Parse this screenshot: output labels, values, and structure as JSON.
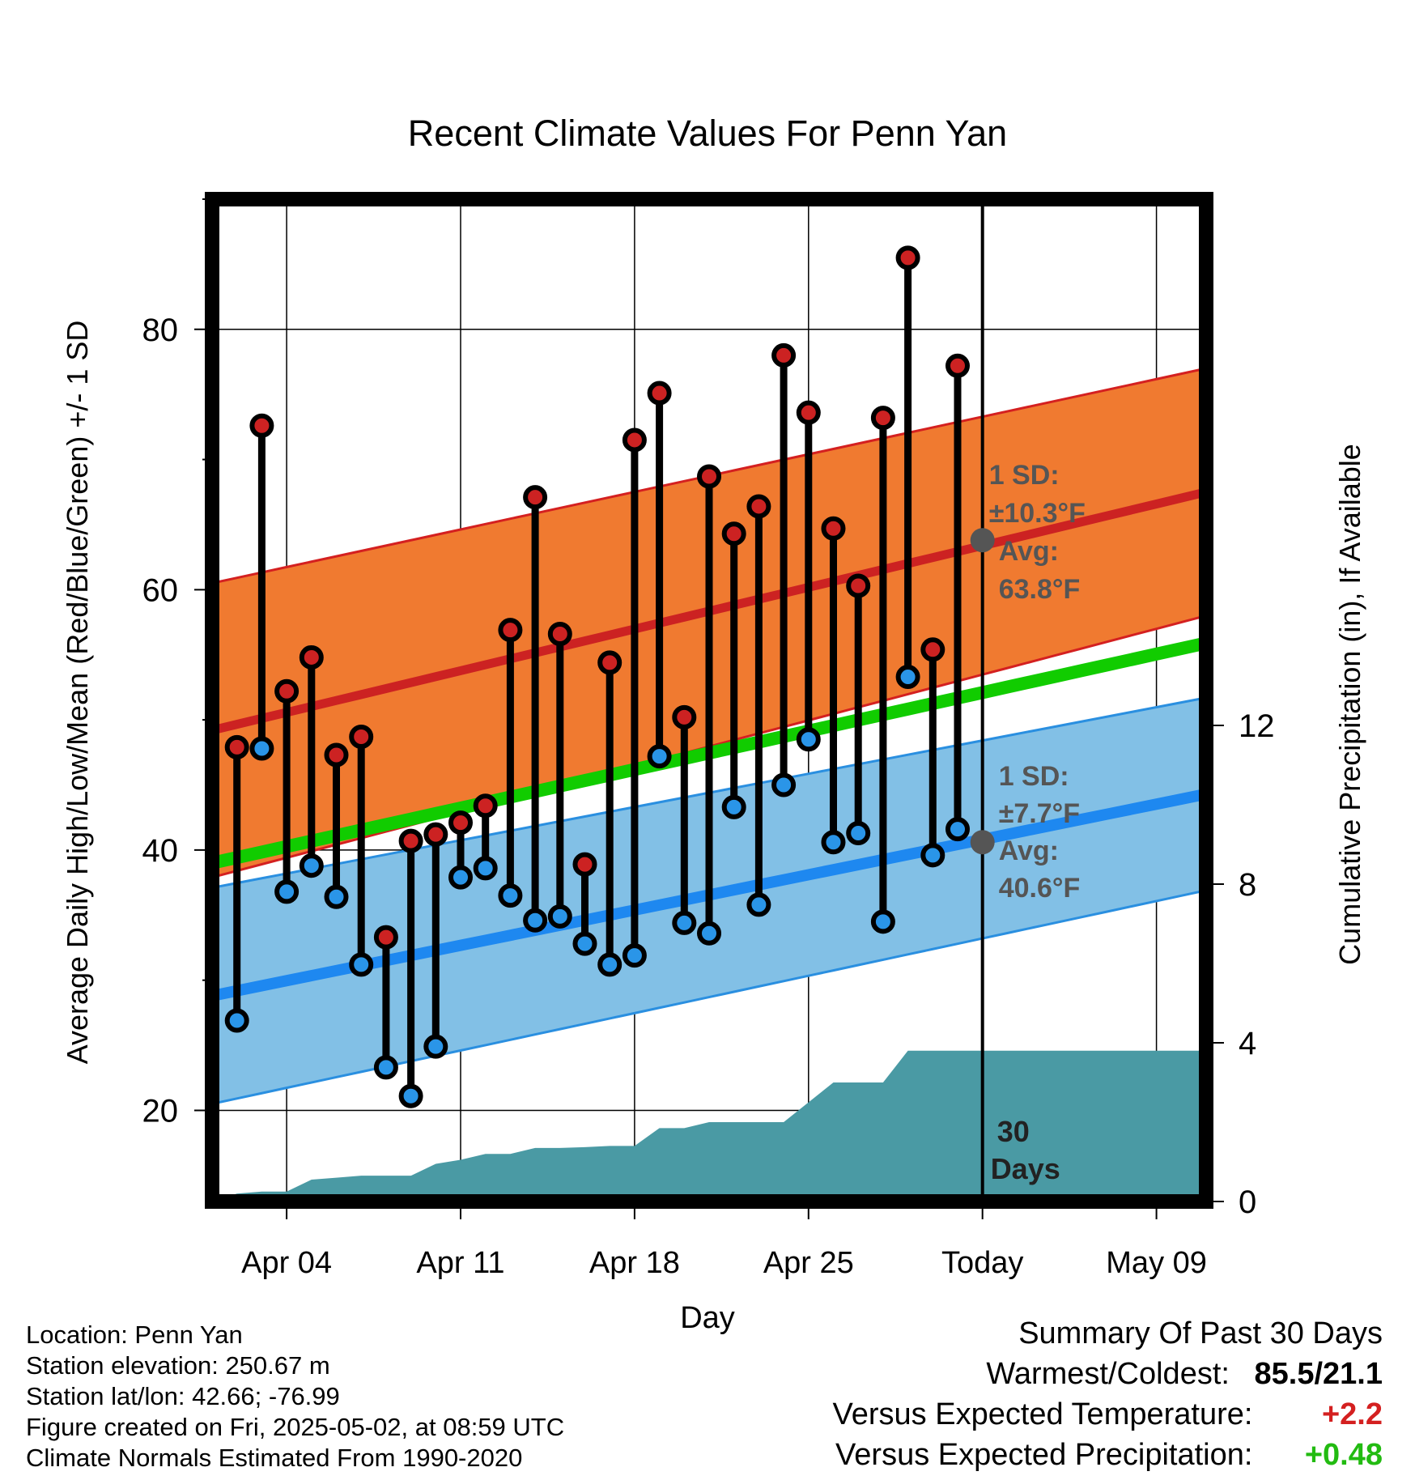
{
  "chart_data": {
    "type": "line",
    "title": "Recent Climate Values For Penn Yan",
    "xlabel": "Day",
    "ylabel": "Average Daily High/Low/Mean (Red/Blue/Green) +/- 1 SD",
    "y2label": "Cumulative Precipitation (in), If Available",
    "ylim": [
      13,
      90
    ],
    "y2lim": [
      0,
      25
    ],
    "yticks": [
      "20",
      "40",
      "60",
      "80"
    ],
    "y2ticks": [
      "0",
      "4",
      "8",
      "12"
    ],
    "xtick_labels": [
      "Apr 04",
      "Apr 11",
      "Apr 18",
      "Apr 25",
      "Today",
      "May 09"
    ],
    "xrange": [
      "Apr 01",
      "May 11"
    ],
    "today_marker": "May 02",
    "days": [
      "Apr 02",
      "Apr 03",
      "Apr 04",
      "Apr 05",
      "Apr 06",
      "Apr 07",
      "Apr 08",
      "Apr 09",
      "Apr 10",
      "Apr 11",
      "Apr 12",
      "Apr 13",
      "Apr 14",
      "Apr 15",
      "Apr 16",
      "Apr 17",
      "Apr 18",
      "Apr 19",
      "Apr 20",
      "Apr 21",
      "Apr 22",
      "Apr 23",
      "Apr 24",
      "Apr 25",
      "Apr 26",
      "Apr 27",
      "Apr 28",
      "Apr 29",
      "Apr 30",
      "May 01"
    ],
    "series": [
      {
        "name": "High",
        "color": "#cc2222",
        "values": [
          47.9,
          72.6,
          52.2,
          54.8,
          47.3,
          48.7,
          33.3,
          40.7,
          41.2,
          42.1,
          43.4,
          56.9,
          67.1,
          56.6,
          38.9,
          54.4,
          71.5,
          75.1,
          50.2,
          68.7,
          64.3,
          66.4,
          78.0,
          73.6,
          64.7,
          60.3,
          73.2,
          85.5,
          55.4,
          77.2
        ]
      },
      {
        "name": "Low",
        "color": "#2a95e8",
        "values": [
          26.9,
          47.8,
          36.8,
          38.8,
          36.4,
          31.2,
          23.3,
          21.1,
          24.9,
          37.9,
          38.6,
          36.5,
          34.6,
          34.9,
          32.8,
          31.2,
          31.9,
          47.2,
          34.4,
          33.6,
          43.3,
          35.8,
          45.0,
          48.5,
          40.6,
          41.3,
          34.5,
          53.3,
          39.6,
          41.6
        ]
      }
    ],
    "normal_high": {
      "name": "Average High",
      "start": 49.2,
      "end": 67.5,
      "sd_start": 11.3,
      "sd_end": 9.5
    },
    "normal_low": {
      "name": "Average Low",
      "start": 28.8,
      "end": 44.3,
      "sd_start": 8.3,
      "sd_end": 7.4
    },
    "normal_mean": {
      "name": "Average Mean",
      "start": 39.0,
      "end": 55.9
    },
    "cumulative_precip": {
      "days": [
        "Apr 01",
        "Apr 02",
        "Apr 03",
        "Apr 04",
        "Apr 05",
        "Apr 06",
        "Apr 07",
        "Apr 08",
        "Apr 09",
        "Apr 10",
        "Apr 11",
        "Apr 12",
        "Apr 13",
        "Apr 14",
        "Apr 15",
        "Apr 16",
        "Apr 17",
        "Apr 18",
        "Apr 19",
        "Apr 20",
        "Apr 21",
        "Apr 22",
        "Apr 23",
        "Apr 24",
        "Apr 25",
        "Apr 26",
        "Apr 27",
        "Apr 28",
        "Apr 29",
        "Apr 30",
        "May 01",
        "May 02"
      ],
      "values": [
        0,
        0.2,
        0.25,
        0.25,
        0.55,
        0.6,
        0.65,
        0.65,
        0.65,
        0.95,
        1.05,
        1.2,
        1.2,
        1.35,
        1.35,
        1.37,
        1.4,
        1.4,
        1.85,
        1.85,
        2.0,
        2.0,
        2.0,
        2.0,
        2.5,
        3.0,
        3.0,
        3.0,
        3.8,
        3.8,
        3.8,
        3.8
      ],
      "carry_to_end": 3.8,
      "color": "#4a9aa4"
    },
    "annotations": {
      "high": {
        "sd_label": "1 SD:",
        "sd_value": "±10.3°F",
        "avg_label": "Avg:",
        "avg_value": "63.8°F",
        "avg": 63.8
      },
      "low": {
        "sd_label": "1 SD:",
        "sd_value": "±7.7°F",
        "avg_label": "Avg:",
        "avg_value": "40.6°F",
        "avg": 40.6
      },
      "days_count": "30",
      "days_word": "Days"
    },
    "colors": {
      "high_band": "#f07a30",
      "low_band": "#82c0e6",
      "mean_line": "#11cc00",
      "today_line": "#000000",
      "annotation_text": "#555555"
    }
  },
  "info": {
    "location": "Location: Penn Yan",
    "elevation": "Station elevation: 250.67 m",
    "latlon": "Station lat/lon: 42.66; -76.99",
    "created": "Figure created on Fri, 2025-05-02, at 08:59 UTC",
    "normals": "Climate Normals Estimated From 1990-2020"
  },
  "summary": {
    "title": "Summary Of Past 30 Days",
    "warm_cold_label": "Warmest/Coldest:",
    "warm_cold_value": "85.5/21.1",
    "temp_label": "Versus Expected Temperature:",
    "temp_value": "+2.2",
    "temp_color": "#d42020",
    "precip_label": "Versus Expected Precipitation:",
    "precip_value": "+0.48",
    "precip_color": "#22bb11"
  }
}
